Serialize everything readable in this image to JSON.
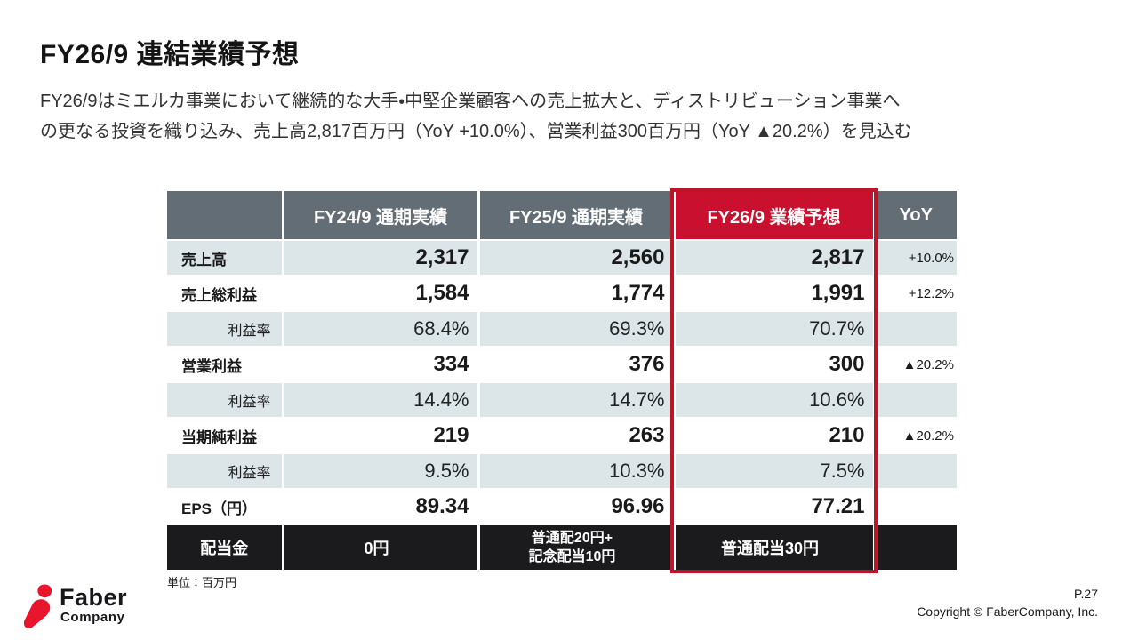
{
  "page": {
    "title": "FY26/9 連結業績予想",
    "body_line1": "FY26/9はミエルカ事業において継続的な大手・中堅企業顧客への売上拡大と、ディストリビューション事業へ",
    "body_line2": "の更なる投資を織り込み、売上高2,817百万円（YoY +10.0%）、営業利益300百万円（YoY ▲20.2%）を見込む",
    "unit_note": "単位：百万円",
    "page_number": "P.27",
    "copyright": "Copyright © FaberCompany, Inc.",
    "logo": {
      "brand_top": "Faber",
      "brand_bottom": "Company"
    }
  },
  "colors": {
    "header_gray": "#636d75",
    "forecast_red": "#c9102e",
    "highlight_border_red": "#bd1428",
    "row_light": "#dce6e8",
    "dividend_black": "#1b1b1d",
    "logo_red": "#e8152d"
  },
  "chart_data": {
    "type": "table",
    "title": "FY26/9 連結業績予想",
    "columns": [
      "",
      "FY24/9 通期実績",
      "FY25/9 通期実績",
      "FY26/9 業績予想",
      "YoY"
    ],
    "rows": [
      {
        "label": "売上高",
        "type": "main",
        "fy24": "2,317",
        "fy25": "2,560",
        "fy26": "2,817",
        "yoy": "+10.0%"
      },
      {
        "label": "売上総利益",
        "type": "main",
        "fy24": "1,584",
        "fy25": "1,774",
        "fy26": "1,991",
        "yoy": "+12.2%"
      },
      {
        "label": "利益率",
        "type": "sub",
        "fy24": "68.4%",
        "fy25": "69.3%",
        "fy26": "70.7%",
        "yoy": ""
      },
      {
        "label": "営業利益",
        "type": "main",
        "fy24": "334",
        "fy25": "376",
        "fy26": "300",
        "yoy": "▲20.2%"
      },
      {
        "label": "利益率",
        "type": "sub",
        "fy24": "14.4%",
        "fy25": "14.7%",
        "fy26": "10.6%",
        "yoy": ""
      },
      {
        "label": "当期純利益",
        "type": "main",
        "fy24": "219",
        "fy25": "263",
        "fy26": "210",
        "yoy": "▲20.2%"
      },
      {
        "label": "利益率",
        "type": "sub",
        "fy24": "9.5%",
        "fy25": "10.3%",
        "fy26": "7.5%",
        "yoy": ""
      },
      {
        "label": "EPS（円）",
        "type": "main",
        "fy24": "89.34",
        "fy25": "96.96",
        "fy26": "77.21",
        "yoy": ""
      }
    ],
    "dividend_row": {
      "label": "配当金",
      "fy24": "0円",
      "fy25": "普通配20円+\n記念配当10円",
      "fy26": "普通配当30円",
      "yoy": ""
    }
  }
}
